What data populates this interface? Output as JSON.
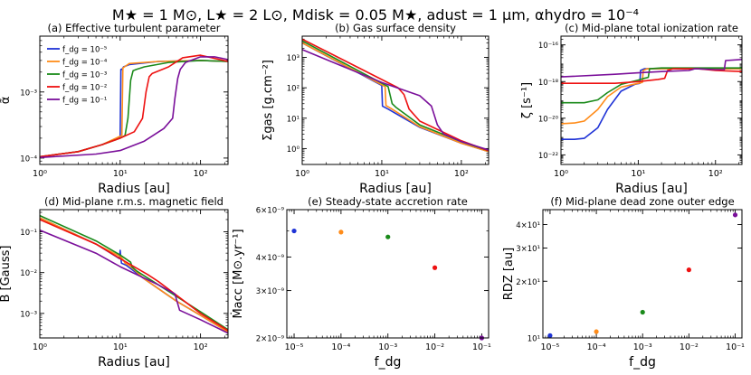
{
  "figure": {
    "title": "M★ = 1 M⊙, L★ = 2 L⊙, Mdisk = 0.05 M★, adust = 1 μm, αhydro = 10⁻⁴",
    "colors": {
      "c1": "#1f33d6",
      "c2": "#ff8c1a",
      "c3": "#1a8a1a",
      "c4": "#ee1111",
      "c5": "#7a0f9a"
    }
  },
  "chart_data": [
    {
      "id": "a",
      "type": "line",
      "title": "(a) Effective turbulent parameter",
      "xlabel": "Radius [au]",
      "ylabel": "α̃",
      "xscale": "log",
      "yscale": "log",
      "xlim": [
        1,
        220
      ],
      "ylim": [
        8e-05,
        0.007
      ],
      "xticks": [
        {
          "v": 1,
          "label": "10⁰"
        },
        {
          "v": 10,
          "label": "10¹"
        },
        {
          "v": 100,
          "label": "10²"
        }
      ],
      "yticks": [
        {
          "v": 0.0001,
          "label": "10⁻⁴"
        },
        {
          "v": 0.001,
          "label": "10⁻³"
        }
      ],
      "legend": {
        "position": "top-left",
        "entries": [
          "f_dg = 10⁻⁵",
          "f_dg = 10⁻⁴",
          "f_dg = 10⁻³",
          "f_dg = 10⁻²",
          "f_dg = 10⁻¹"
        ]
      },
      "series": [
        {
          "name": "f_dg = 10⁻⁵",
          "color": "#1f33d6",
          "x": [
            1,
            3,
            6,
            10.0,
            10.2,
            10.5,
            11,
            13,
            30,
            100,
            220
          ],
          "y": [
            0.000105,
            0.000125,
            0.00016,
            0.00021,
            0.0022,
            0.0022,
            0.0024,
            0.0026,
            0.0029,
            0.003,
            0.0029
          ]
        },
        {
          "name": "f_dg = 10⁻⁴",
          "color": "#ff8c1a",
          "x": [
            1,
            3,
            6,
            10.5,
            10.8,
            11.3,
            13,
            30,
            100,
            220
          ],
          "y": [
            0.000105,
            0.000125,
            0.00016,
            0.00022,
            0.0023,
            0.0024,
            0.0027,
            0.0029,
            0.003,
            0.0029
          ]
        },
        {
          "name": "f_dg = 10⁻³",
          "color": "#1a8a1a",
          "x": [
            1,
            3,
            6,
            10,
            11.5,
            12.5,
            13.5,
            14.5,
            16,
            20,
            40,
            100,
            220
          ],
          "y": [
            0.000105,
            0.000125,
            0.00016,
            0.0002,
            0.00022,
            0.0004,
            0.0015,
            0.0021,
            0.0022,
            0.0024,
            0.0028,
            0.003,
            0.0029
          ]
        },
        {
          "name": "f_dg = 10⁻²",
          "color": "#ee1111",
          "x": [
            1,
            3,
            6,
            10,
            15,
            19,
            21,
            23,
            25,
            40,
            60,
            100,
            220
          ],
          "y": [
            0.000105,
            0.000125,
            0.00016,
            0.0002,
            0.00025,
            0.0004,
            0.001,
            0.0017,
            0.0019,
            0.0024,
            0.0033,
            0.0036,
            0.0029
          ]
        },
        {
          "name": "f_dg = 10⁻¹",
          "color": "#7a0f9a",
          "x": [
            1,
            5,
            10,
            20,
            35,
            45,
            48,
            52,
            56,
            65,
            100,
            150,
            220
          ],
          "y": [
            0.000102,
            0.000115,
            0.00013,
            0.00018,
            0.00028,
            0.0004,
            0.0008,
            0.0016,
            0.0022,
            0.0028,
            0.0034,
            0.0034,
            0.0031
          ]
        }
      ]
    },
    {
      "id": "b",
      "type": "line",
      "title": "(b) Gas surface density",
      "xlabel": "Radius [au]",
      "ylabel": "Σgas [g.cm⁻²]",
      "xscale": "log",
      "yscale": "log",
      "xlim": [
        1,
        220
      ],
      "ylim": [
        0.3,
        5000
      ],
      "xticks": [
        {
          "v": 1,
          "label": "10⁰"
        },
        {
          "v": 10,
          "label": "10¹"
        },
        {
          "v": 100,
          "label": "10²"
        }
      ],
      "yticks": [
        {
          "v": 1,
          "label": "10⁰"
        },
        {
          "v": 10,
          "label": "10¹"
        },
        {
          "v": 100,
          "label": "10²"
        },
        {
          "v": 1000,
          "label": "10³"
        }
      ],
      "series": [
        {
          "name": "f_dg = 10⁻⁵",
          "color": "#1f33d6",
          "x": [
            1,
            10,
            10.2,
            12,
            30,
            100,
            220
          ],
          "y": [
            3000,
            120,
            25,
            20,
            5,
            1.5,
            0.8
          ]
        },
        {
          "name": "f_dg = 10⁻⁴",
          "color": "#ff8c1a",
          "x": [
            1,
            11,
            11.3,
            13,
            30,
            100,
            220
          ],
          "y": [
            3000,
            110,
            26,
            21,
            5.2,
            1.5,
            0.8
          ]
        },
        {
          "name": "f_dg = 10⁻³",
          "color": "#1a8a1a",
          "x": [
            1,
            12,
            13.5,
            15,
            30,
            100,
            220
          ],
          "y": [
            3500,
            110,
            30,
            23,
            6,
            1.7,
            0.85
          ]
        },
        {
          "name": "f_dg = 10⁻²",
          "color": "#ee1111",
          "x": [
            1,
            16,
            19,
            22,
            30,
            100,
            220
          ],
          "y": [
            4000,
            100,
            60,
            20,
            8,
            1.8,
            0.85
          ]
        },
        {
          "name": "f_dg = 10⁻¹",
          "color": "#7a0f9a",
          "x": [
            1,
            10,
            30,
            42,
            50,
            60,
            100,
            220
          ],
          "y": [
            1800,
            150,
            55,
            25,
            6,
            3,
            1.7,
            0.9
          ]
        }
      ]
    },
    {
      "id": "c",
      "type": "line",
      "title": "(c) Mid-plane total ionization rate",
      "xlabel": "Radius [au]",
      "ylabel": "ζ [s⁻¹]",
      "xscale": "log",
      "yscale": "log",
      "xlim": [
        1,
        220
      ],
      "ylim": [
        3e-23,
        3e-16
      ],
      "xticks": [
        {
          "v": 1,
          "label": "10⁰"
        },
        {
          "v": 10,
          "label": "10¹"
        },
        {
          "v": 100,
          "label": "10²"
        }
      ],
      "yticks": [
        {
          "v": 1e-22,
          "label": "10⁻²²"
        },
        {
          "v": 1e-20,
          "label": "10⁻²⁰"
        },
        {
          "v": 1e-18,
          "label": "10⁻¹⁸"
        },
        {
          "v": 1e-16,
          "label": "10⁻¹⁶"
        }
      ],
      "series": [
        {
          "name": "f_dg = 10⁻⁵",
          "color": "#1f33d6",
          "x": [
            1,
            1.5,
            2,
            3,
            4,
            6,
            9,
            10.5,
            10.7,
            12,
            30,
            100,
            220
          ],
          "y": [
            7e-22,
            7e-22,
            8e-22,
            3e-21,
            3e-20,
            3e-19,
            7e-19,
            8e-19,
            4e-18,
            5e-18,
            5e-18,
            5e-18,
            5e-18
          ]
        },
        {
          "name": "f_dg = 10⁻⁴",
          "color": "#ff8c1a",
          "x": [
            1,
            1.5,
            2,
            3,
            4,
            6,
            10,
            11.3,
            11.6,
            13,
            30,
            100,
            220
          ],
          "y": [
            5e-21,
            5.5e-21,
            7e-21,
            3e-20,
            1.5e-19,
            5e-19,
            8e-19,
            9e-19,
            4e-18,
            5e-18,
            5e-18,
            5e-18,
            5e-18
          ]
        },
        {
          "name": "f_dg = 10⁻³",
          "color": "#1a8a1a",
          "x": [
            1,
            2,
            3,
            4,
            6,
            10,
            12,
            13.5,
            14,
            20,
            100,
            220
          ],
          "y": [
            7e-20,
            7e-20,
            1e-19,
            2.5e-19,
            7e-19,
            1.2e-18,
            1.5e-18,
            1.7e-18,
            5e-18,
            5.5e-18,
            5.5e-18,
            5.5e-18
          ]
        },
        {
          "name": "f_dg = 10⁻²",
          "color": "#ee1111",
          "x": [
            1,
            5,
            10,
            18,
            22,
            24,
            28,
            40,
            60,
            100,
            220
          ],
          "y": [
            8e-19,
            8e-19,
            1e-18,
            1.3e-18,
            1.5e-18,
            4e-18,
            5e-18,
            5e-18,
            5e-18,
            4e-18,
            3.5e-18
          ]
        },
        {
          "name": "f_dg = 10⁻¹",
          "color": "#7a0f9a",
          "x": [
            1,
            5,
            10,
            20,
            45,
            50,
            54,
            100,
            130,
            135,
            220
          ],
          "y": [
            1.8e-18,
            2.5e-18,
            3e-18,
            3.5e-18,
            4e-18,
            4.5e-18,
            5e-18,
            4.5e-18,
            4.5e-18,
            1.4e-17,
            1.6e-17
          ]
        }
      ]
    },
    {
      "id": "d",
      "type": "line",
      "title": "(d) Mid-plane r.m.s. magnetic field",
      "xlabel": "Radius [au]",
      "ylabel": "B [Gauss]",
      "xscale": "log",
      "yscale": "log",
      "xlim": [
        1,
        220
      ],
      "ylim": [
        0.00025,
        0.35
      ],
      "xticks": [
        {
          "v": 1,
          "label": "10⁰"
        },
        {
          "v": 10,
          "label": "10¹"
        },
        {
          "v": 100,
          "label": "10²"
        }
      ],
      "yticks": [
        {
          "v": 0.001,
          "label": "10⁻³"
        },
        {
          "v": 0.01,
          "label": "10⁻²"
        },
        {
          "v": 0.1,
          "label": "10⁻¹"
        }
      ],
      "series": [
        {
          "name": "f_dg = 10⁻⁵",
          "color": "#1f33d6",
          "x": [
            1,
            5,
            9.8,
            10,
            10.2,
            10.4,
            12,
            20,
            50,
            100,
            220
          ],
          "y": [
            0.22,
            0.05,
            0.022,
            0.035,
            0.022,
            0.017,
            0.015,
            0.007,
            0.002,
            0.0009,
            0.00035
          ]
        },
        {
          "name": "f_dg = 10⁻⁴",
          "color": "#ff8c1a",
          "x": [
            1,
            5,
            10,
            11,
            11.5,
            13,
            20,
            50,
            100,
            220
          ],
          "y": [
            0.22,
            0.05,
            0.025,
            0.02,
            0.017,
            0.015,
            0.007,
            0.002,
            0.0009,
            0.00035
          ]
        },
        {
          "name": "f_dg = 10⁻³",
          "color": "#1a8a1a",
          "x": [
            1,
            5,
            10,
            13.5,
            14,
            16,
            30,
            100,
            220
          ],
          "y": [
            0.25,
            0.06,
            0.027,
            0.018,
            0.014,
            0.011,
            0.005,
            0.0011,
            0.0004
          ]
        },
        {
          "name": "f_dg = 10⁻²",
          "color": "#ee1111",
          "x": [
            1,
            5,
            10,
            20,
            22,
            30,
            100,
            220
          ],
          "y": [
            0.2,
            0.05,
            0.022,
            0.01,
            0.009,
            0.006,
            0.001,
            0.00038
          ]
        },
        {
          "name": "f_dg = 10⁻¹",
          "color": "#7a0f9a",
          "x": [
            1,
            5,
            10,
            30,
            48,
            55,
            100,
            220
          ],
          "y": [
            0.11,
            0.03,
            0.014,
            0.005,
            0.003,
            0.0012,
            0.0007,
            0.00033
          ]
        }
      ]
    },
    {
      "id": "e",
      "type": "scatter",
      "title": "(e) Steady-state accretion rate",
      "xlabel": "f_dg",
      "ylabel": "Ṁacc [M⊙.yr⁻¹]",
      "xscale": "log",
      "yscale": "log",
      "xlim": [
        7e-06,
        0.14
      ],
      "ylim": [
        2e-09,
        6e-09
      ],
      "xticks": [
        {
          "v": 1e-05,
          "label": "10⁻⁵"
        },
        {
          "v": 0.0001,
          "label": "10⁻⁴"
        },
        {
          "v": 0.001,
          "label": "10⁻³"
        },
        {
          "v": 0.01,
          "label": "10⁻²"
        },
        {
          "v": 0.1,
          "label": "10⁻¹"
        }
      ],
      "yticks": [
        {
          "v": 2e-09,
          "label": "2×10⁻⁹"
        },
        {
          "v": 3e-09,
          "label": "3×10⁻⁹"
        },
        {
          "v": 4e-09,
          "label": "4×10⁻⁹"
        },
        {
          "v": 6e-09,
          "label": "6×10⁻⁹"
        }
      ],
      "series": [
        {
          "name": "f_dg = 10⁻⁵",
          "color": "#1f33d6",
          "x": [
            1e-05
          ],
          "y": [
            5e-09
          ]
        },
        {
          "name": "f_dg = 10⁻⁴",
          "color": "#ff8c1a",
          "x": [
            0.0001
          ],
          "y": [
            4.95e-09
          ]
        },
        {
          "name": "f_dg = 10⁻³",
          "color": "#1a8a1a",
          "x": [
            0.001
          ],
          "y": [
            4.75e-09
          ]
        },
        {
          "name": "f_dg = 10⁻²",
          "color": "#ee1111",
          "x": [
            0.01
          ],
          "y": [
            3.65e-09
          ]
        },
        {
          "name": "f_dg = 10⁻¹",
          "color": "#7a0f9a",
          "x": [
            0.1
          ],
          "y": [
            2e-09
          ]
        }
      ]
    },
    {
      "id": "f",
      "type": "scatter",
      "title": "(f) Mid-plane dead zone outer edge",
      "xlabel": "f_dg",
      "ylabel": "RDZ [au]",
      "xscale": "log",
      "yscale": "log",
      "xlim": [
        7e-06,
        0.14
      ],
      "ylim": [
        10,
        48
      ],
      "xticks": [
        {
          "v": 1e-05,
          "label": "10⁻⁵"
        },
        {
          "v": 0.0001,
          "label": "10⁻⁴"
        },
        {
          "v": 0.001,
          "label": "10⁻³"
        },
        {
          "v": 0.01,
          "label": "10⁻²"
        },
        {
          "v": 0.1,
          "label": "10⁻¹"
        }
      ],
      "yticks": [
        {
          "v": 10,
          "label": "10¹"
        },
        {
          "v": 20,
          "label": "2×10¹"
        },
        {
          "v": 30,
          "label": "3×10¹"
        },
        {
          "v": 40,
          "label": "4×10¹"
        }
      ],
      "series": [
        {
          "name": "f_dg = 10⁻⁵",
          "color": "#1f33d6",
          "x": [
            1e-05
          ],
          "y": [
            10.3
          ]
        },
        {
          "name": "f_dg = 10⁻⁴",
          "color": "#ff8c1a",
          "x": [
            0.0001
          ],
          "y": [
            10.8
          ]
        },
        {
          "name": "f_dg = 10⁻³",
          "color": "#1a8a1a",
          "x": [
            0.001
          ],
          "y": [
            13.7
          ]
        },
        {
          "name": "f_dg = 10⁻²",
          "color": "#ee1111",
          "x": [
            0.01
          ],
          "y": [
            23
          ]
        },
        {
          "name": "f_dg = 10⁻¹",
          "color": "#7a0f9a",
          "x": [
            0.1
          ],
          "y": [
            45
          ]
        }
      ]
    }
  ]
}
